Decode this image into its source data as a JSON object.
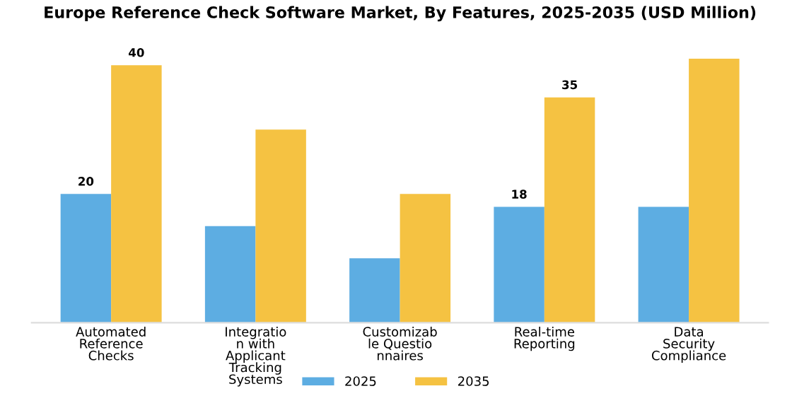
{
  "chart_data": {
    "type": "bar",
    "title": "Europe Reference Check Software Market, By Features, 2025-2035 (USD Million)",
    "categories": [
      "Automated\nReference\nChecks",
      "Integratio\nn with\nApplicant\nTracking\nSystems",
      "Customizab\nle Questio\nnnaires",
      "Real-time\nReporting",
      "Data\nSecurity\nCompliance"
    ],
    "series": [
      {
        "name": "2025",
        "color": "#5dade2",
        "values": [
          20,
          15,
          10,
          18,
          18
        ],
        "value_labels": [
          "20",
          null,
          null,
          "18",
          null
        ]
      },
      {
        "name": "2035",
        "color": "#f5c242",
        "values": [
          40,
          30,
          20,
          35,
          41
        ],
        "value_labels": [
          "40",
          null,
          null,
          "35",
          null
        ]
      }
    ],
    "legend": "bottom",
    "grid": false
  }
}
